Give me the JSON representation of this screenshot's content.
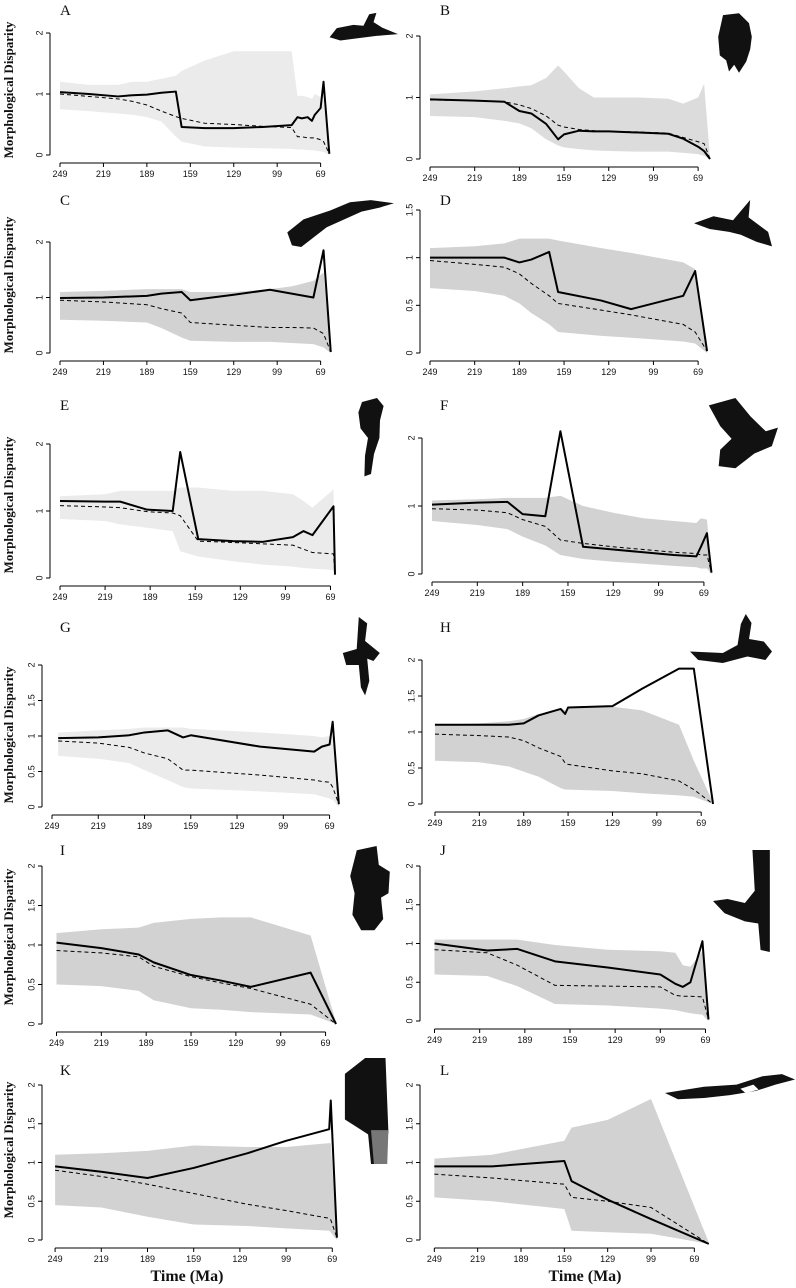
{
  "figure": {
    "shared_ylabel": "Morphological Disparity",
    "shared_xlabel": "Time (Ma)"
  },
  "colors": {
    "band_light": "#ebebeb",
    "band_mid": "#dcdcdc",
    "band_dark": "#d2d2d2",
    "line": "#000000",
    "silhouette": "#111111"
  },
  "chart_data": [
    {
      "panel": "A",
      "type": "line",
      "band_color": "band_light",
      "icon": "horn-silhouette-icon",
      "ylim": [
        0,
        2
      ],
      "yticks": [
        "0",
        "1",
        "2"
      ],
      "xlim": [
        249,
        57
      ],
      "xticks": [
        "249",
        "219",
        "189",
        "159",
        "129",
        "99",
        "69"
      ],
      "x": [
        249,
        229,
        209,
        199,
        189,
        179,
        169,
        165,
        149,
        129,
        109,
        89,
        85,
        82,
        78,
        75,
        73,
        69,
        67,
        63
      ],
      "observed": [
        1.03,
        1.0,
        0.96,
        0.98,
        0.99,
        1.02,
        1.04,
        0.46,
        0.44,
        0.44,
        0.46,
        0.49,
        0.62,
        0.6,
        0.62,
        0.56,
        0.66,
        0.77,
        1.2,
        0.02
      ],
      "expected": [
        1.0,
        0.96,
        0.92,
        0.88,
        0.82,
        0.72,
        0.63,
        0.6,
        0.52,
        0.5,
        0.47,
        0.45,
        0.3,
        0.3,
        0.28,
        0.28,
        0.28,
        0.25,
        0.22,
        0.02
      ],
      "band_low": [
        0.75,
        0.72,
        0.68,
        0.66,
        0.62,
        0.55,
        0.3,
        0.22,
        0.14,
        0.12,
        0.11,
        0.1,
        0.09,
        0.09,
        0.08,
        0.08,
        0.07,
        0.06,
        0.05,
        0.0
      ],
      "band_high": [
        1.2,
        1.15,
        1.15,
        1.2,
        1.2,
        1.25,
        1.3,
        1.38,
        1.55,
        1.7,
        1.7,
        1.7,
        0.97,
        0.97,
        0.95,
        0.92,
        1.0,
        0.95,
        0.9,
        0.02
      ]
    },
    {
      "panel": "B",
      "type": "line",
      "band_color": "band_mid",
      "icon": "ribbed-jaw-silhouette-icon",
      "ylim": [
        0,
        2
      ],
      "yticks": [
        "0",
        "1",
        "2"
      ],
      "xlim": [
        249,
        57
      ],
      "xticks": [
        "249",
        "219",
        "189",
        "159",
        "129",
        "99",
        "69"
      ],
      "x": [
        249,
        219,
        199,
        189,
        181,
        171,
        163,
        159,
        149,
        139,
        129,
        109,
        89,
        79,
        69,
        65,
        61
      ],
      "observed": [
        0.97,
        0.95,
        0.93,
        0.78,
        0.74,
        0.57,
        0.32,
        0.4,
        0.46,
        0.45,
        0.45,
        0.43,
        0.41,
        0.33,
        0.2,
        0.13,
        0.0
      ],
      "expected": [
        0.96,
        0.95,
        0.93,
        0.88,
        0.82,
        0.7,
        0.55,
        0.52,
        0.48,
        0.46,
        0.45,
        0.44,
        0.42,
        0.35,
        0.28,
        0.25,
        0.0
      ],
      "band_low": [
        0.7,
        0.68,
        0.62,
        0.58,
        0.5,
        0.32,
        0.22,
        0.19,
        0.16,
        0.14,
        0.13,
        0.12,
        0.12,
        0.1,
        0.08,
        0.05,
        0.0
      ],
      "band_high": [
        1.05,
        1.1,
        1.15,
        1.18,
        1.2,
        1.32,
        1.52,
        1.42,
        1.15,
        1.0,
        1.0,
        1.0,
        0.98,
        0.9,
        1.0,
        1.22,
        0.02
      ]
    },
    {
      "panel": "C",
      "type": "line",
      "band_color": "band_dark",
      "icon": "long-skull-silhouette-icon",
      "ylim": [
        0,
        2
      ],
      "yticks": [
        "0",
        "1",
        "2"
      ],
      "xlim": [
        249,
        57
      ],
      "xticks": [
        "249",
        "219",
        "189",
        "159",
        "129",
        "99",
        "69"
      ],
      "x": [
        249,
        219,
        189,
        179,
        165,
        159,
        129,
        104,
        89,
        74,
        67,
        62
      ],
      "observed": [
        0.99,
        1.0,
        1.03,
        1.07,
        1.1,
        0.95,
        1.05,
        1.14,
        1.07,
        1.0,
        1.85,
        0.02
      ],
      "expected": [
        0.95,
        0.92,
        0.87,
        0.8,
        0.72,
        0.55,
        0.5,
        0.46,
        0.46,
        0.45,
        0.35,
        0.02
      ],
      "band_low": [
        0.6,
        0.58,
        0.55,
        0.45,
        0.28,
        0.22,
        0.2,
        0.2,
        0.18,
        0.16,
        0.1,
        0.0
      ],
      "band_high": [
        1.1,
        1.12,
        1.15,
        1.15,
        1.15,
        1.1,
        1.1,
        1.15,
        1.2,
        1.3,
        1.45,
        0.05
      ]
    },
    {
      "panel": "D",
      "type": "line",
      "band_color": "band_dark",
      "icon": "crested-skull-silhouette-icon",
      "ylim": [
        0,
        1.5
      ],
      "yticks": [
        "0",
        "0.5",
        "1",
        "1.5"
      ],
      "xlim": [
        249,
        57
      ],
      "xticks": [
        "249",
        "219",
        "189",
        "159",
        "129",
        "99",
        "69"
      ],
      "x": [
        249,
        219,
        199,
        189,
        181,
        169,
        163,
        134,
        114,
        79,
        71,
        63
      ],
      "observed": [
        1.0,
        1.0,
        1.0,
        0.95,
        0.98,
        1.06,
        0.64,
        0.55,
        0.46,
        0.6,
        0.86,
        0.02
      ],
      "expected": [
        0.97,
        0.93,
        0.9,
        0.83,
        0.73,
        0.6,
        0.52,
        0.45,
        0.4,
        0.3,
        0.22,
        0.02
      ],
      "band_low": [
        0.68,
        0.65,
        0.6,
        0.52,
        0.42,
        0.3,
        0.22,
        0.18,
        0.16,
        0.12,
        0.1,
        0.0
      ],
      "band_high": [
        1.1,
        1.12,
        1.15,
        1.2,
        1.2,
        1.2,
        1.18,
        1.1,
        1.05,
        0.95,
        0.88,
        0.05
      ]
    },
    {
      "panel": "E",
      "type": "line",
      "band_color": "band_light",
      "icon": "tooth-silhouette-icon",
      "ylim": [
        0,
        2
      ],
      "yticks": [
        "0",
        "1",
        "2"
      ],
      "xlim": [
        249,
        64
      ],
      "xticks": [
        "249",
        "219",
        "189",
        "159",
        "129",
        "99",
        "69"
      ],
      "x": [
        249,
        219,
        209,
        191,
        174,
        169,
        157,
        134,
        114,
        94,
        87,
        81,
        67,
        66
      ],
      "observed": [
        1.15,
        1.14,
        1.14,
        1.02,
        1.0,
        1.88,
        0.58,
        0.55,
        0.54,
        0.61,
        0.7,
        0.64,
        1.07,
        0.05
      ],
      "expected": [
        1.08,
        1.06,
        1.05,
        0.99,
        0.97,
        0.93,
        0.55,
        0.53,
        0.51,
        0.49,
        0.43,
        0.38,
        0.36,
        0.05
      ],
      "band_low": [
        0.88,
        0.85,
        0.8,
        0.75,
        0.7,
        0.4,
        0.32,
        0.25,
        0.2,
        0.17,
        0.15,
        0.14,
        0.12,
        0.0
      ],
      "band_high": [
        1.22,
        1.25,
        1.3,
        1.3,
        1.3,
        1.35,
        1.35,
        1.3,
        1.3,
        1.25,
        1.15,
        1.05,
        1.32,
        0.05
      ]
    },
    {
      "panel": "F",
      "type": "line",
      "band_color": "band_dark",
      "icon": "broad-skull-silhouette-icon",
      "ylim": [
        0,
        2
      ],
      "yticks": [
        "0",
        "1",
        "2"
      ],
      "xlim": [
        249,
        61
      ],
      "xticks": [
        "249",
        "219",
        "189",
        "159",
        "129",
        "99",
        "69"
      ],
      "x": [
        249,
        219,
        199,
        189,
        174,
        164,
        149,
        129,
        109,
        89,
        74,
        71,
        67,
        64
      ],
      "observed": [
        1.02,
        1.05,
        1.06,
        0.88,
        0.85,
        2.1,
        0.4,
        0.36,
        0.32,
        0.28,
        0.26,
        0.4,
        0.6,
        0.02
      ],
      "expected": [
        0.96,
        0.94,
        0.9,
        0.8,
        0.7,
        0.5,
        0.45,
        0.4,
        0.36,
        0.32,
        0.3,
        0.28,
        0.28,
        0.02
      ],
      "band_low": [
        0.78,
        0.72,
        0.66,
        0.55,
        0.42,
        0.28,
        0.22,
        0.18,
        0.15,
        0.12,
        0.1,
        0.08,
        0.08,
        0.0
      ],
      "band_high": [
        1.08,
        1.1,
        1.12,
        1.12,
        1.12,
        1.15,
        1.0,
        0.9,
        0.82,
        0.78,
        0.75,
        0.82,
        0.8,
        0.05
      ]
    },
    {
      "panel": "G",
      "type": "line",
      "band_color": "band_light",
      "icon": "pelvis-silhouette-icon",
      "ylim": [
        0,
        2
      ],
      "yticks": [
        "0",
        "0.5",
        "1",
        "1.5",
        "2"
      ],
      "xlim": [
        249,
        59
      ],
      "xticks": [
        "249",
        "219",
        "189",
        "159",
        "129",
        "99",
        "69"
      ],
      "x": [
        245,
        219,
        199,
        189,
        174,
        164,
        159,
        114,
        79,
        74,
        69,
        67,
        63
      ],
      "observed": [
        0.97,
        0.98,
        1.01,
        1.05,
        1.08,
        0.98,
        1.01,
        0.85,
        0.78,
        0.85,
        0.88,
        1.2,
        0.04
      ],
      "expected": [
        0.93,
        0.9,
        0.84,
        0.76,
        0.68,
        0.52,
        0.52,
        0.45,
        0.38,
        0.36,
        0.35,
        0.28,
        0.04
      ],
      "band_low": [
        0.72,
        0.68,
        0.62,
        0.52,
        0.38,
        0.28,
        0.26,
        0.22,
        0.18,
        0.15,
        0.12,
        0.1,
        0.0
      ],
      "band_high": [
        1.05,
        1.08,
        1.1,
        1.12,
        1.12,
        1.12,
        1.1,
        1.05,
        1.0,
        0.98,
        1.0,
        0.98,
        0.05
      ]
    },
    {
      "panel": "H",
      "type": "line",
      "band_color": "band_dark",
      "icon": "lower-jaw-silhouette-icon",
      "ylim": [
        0,
        2
      ],
      "yticks": [
        "0",
        "0.5",
        "1",
        "1.5",
        "2"
      ],
      "xlim": [
        251,
        59
      ],
      "xticks": [
        "249",
        "219",
        "189",
        "159",
        "129",
        "99",
        "69"
      ],
      "x": [
        249,
        219,
        199,
        189,
        179,
        164,
        161,
        159,
        129,
        109,
        84,
        74,
        61
      ],
      "observed": [
        1.1,
        1.1,
        1.1,
        1.12,
        1.23,
        1.32,
        1.25,
        1.34,
        1.36,
        1.6,
        1.88,
        1.88,
        0.0
      ],
      "expected": [
        0.97,
        0.95,
        0.93,
        0.88,
        0.78,
        0.66,
        0.57,
        0.55,
        0.46,
        0.42,
        0.32,
        0.2,
        0.0
      ],
      "band_low": [
        0.6,
        0.58,
        0.52,
        0.45,
        0.38,
        0.22,
        0.2,
        0.2,
        0.18,
        0.15,
        0.12,
        0.1,
        0.0
      ],
      "band_high": [
        1.1,
        1.12,
        1.15,
        1.18,
        1.25,
        1.33,
        1.3,
        1.33,
        1.35,
        1.3,
        1.1,
        0.6,
        0.02
      ]
    },
    {
      "panel": "I",
      "type": "line",
      "band_color": "band_dark",
      "icon": "vertebra-silhouette-icon",
      "ylim": [
        0,
        2
      ],
      "yticks": [
        "0",
        "0.5",
        "1",
        "1.5",
        "2"
      ],
      "xlim": [
        252,
        56
      ],
      "xticks": [
        "249",
        "219",
        "189",
        "159",
        "129",
        "99",
        "69"
      ],
      "x": [
        249,
        219,
        194,
        184,
        159,
        139,
        119,
        79,
        62
      ],
      "observed": [
        1.03,
        0.96,
        0.88,
        0.78,
        0.62,
        0.55,
        0.47,
        0.65,
        0.0
      ],
      "expected": [
        0.93,
        0.9,
        0.85,
        0.73,
        0.6,
        0.52,
        0.45,
        0.25,
        0.0
      ],
      "band_low": [
        0.5,
        0.48,
        0.42,
        0.3,
        0.2,
        0.18,
        0.15,
        0.12,
        0.0
      ],
      "band_high": [
        1.15,
        1.2,
        1.22,
        1.28,
        1.33,
        1.35,
        1.35,
        1.12,
        0.02
      ]
    },
    {
      "panel": "J",
      "type": "line",
      "band_color": "band_dark",
      "icon": "limb-bone-silhouette-icon",
      "ylim": [
        0,
        2
      ],
      "yticks": [
        "0",
        "0.5",
        "1",
        "1.5",
        "2"
      ],
      "xlim": [
        252,
        62
      ],
      "xticks": [
        "249",
        "219",
        "189",
        "159",
        "129",
        "99",
        "69"
      ],
      "x": [
        249,
        214,
        194,
        169,
        134,
        99,
        89,
        84,
        79,
        71,
        67
      ],
      "observed": [
        1.0,
        0.91,
        0.93,
        0.77,
        0.69,
        0.6,
        0.48,
        0.44,
        0.5,
        1.03,
        0.02
      ],
      "expected": [
        0.92,
        0.88,
        0.72,
        0.46,
        0.45,
        0.44,
        0.33,
        0.32,
        0.32,
        0.31,
        0.02
      ],
      "band_low": [
        0.6,
        0.58,
        0.45,
        0.22,
        0.2,
        0.16,
        0.14,
        0.12,
        0.1,
        0.08,
        0.0
      ],
      "band_high": [
        1.05,
        1.05,
        1.05,
        0.98,
        0.92,
        0.9,
        0.88,
        0.72,
        0.7,
        0.9,
        0.05
      ]
    },
    {
      "panel": "K",
      "type": "line",
      "band_color": "band_dark",
      "icon": "two-tone-skull-silhouette-icon",
      "ylim": [
        0,
        2
      ],
      "yticks": [
        "0",
        "0.5",
        "1",
        "1.5",
        "2"
      ],
      "xlim": [
        251,
        64
      ],
      "xticks": [
        "249",
        "219",
        "189",
        "159",
        "129",
        "99",
        "69"
      ],
      "x": [
        249,
        219,
        189,
        159,
        124,
        99,
        71,
        70,
        66
      ],
      "observed": [
        0.95,
        0.88,
        0.8,
        0.93,
        1.12,
        1.28,
        1.43,
        1.8,
        0.03
      ],
      "expected": [
        0.9,
        0.82,
        0.72,
        0.6,
        0.46,
        0.38,
        0.28,
        0.26,
        0.03
      ],
      "band_low": [
        0.45,
        0.42,
        0.3,
        0.2,
        0.18,
        0.15,
        0.12,
        0.1,
        0.0
      ],
      "band_high": [
        1.1,
        1.12,
        1.15,
        1.22,
        1.2,
        1.2,
        1.25,
        1.25,
        0.05
      ]
    },
    {
      "panel": "L",
      "type": "line",
      "band_color": "band_dark",
      "icon": "fused-vertebrae-silhouette-icon",
      "ylim": [
        0,
        2
      ],
      "yticks": [
        "0",
        "0.5",
        "1",
        "1.5",
        "2"
      ],
      "xlim": [
        252,
        54
      ],
      "xticks": [
        "249",
        "219",
        "189",
        "159",
        "129",
        "99",
        "69"
      ],
      "x": [
        249,
        209,
        159,
        154,
        129,
        99,
        59
      ],
      "observed": [
        0.95,
        0.95,
        1.02,
        0.76,
        0.52,
        0.27,
        -0.05
      ],
      "expected": [
        0.85,
        0.8,
        0.72,
        0.55,
        0.5,
        0.42,
        -0.05
      ],
      "band_low": [
        0.55,
        0.5,
        0.4,
        0.12,
        0.1,
        0.08,
        -0.05
      ],
      "band_high": [
        1.05,
        1.1,
        1.28,
        1.45,
        1.55,
        1.82,
        -0.03
      ]
    }
  ]
}
